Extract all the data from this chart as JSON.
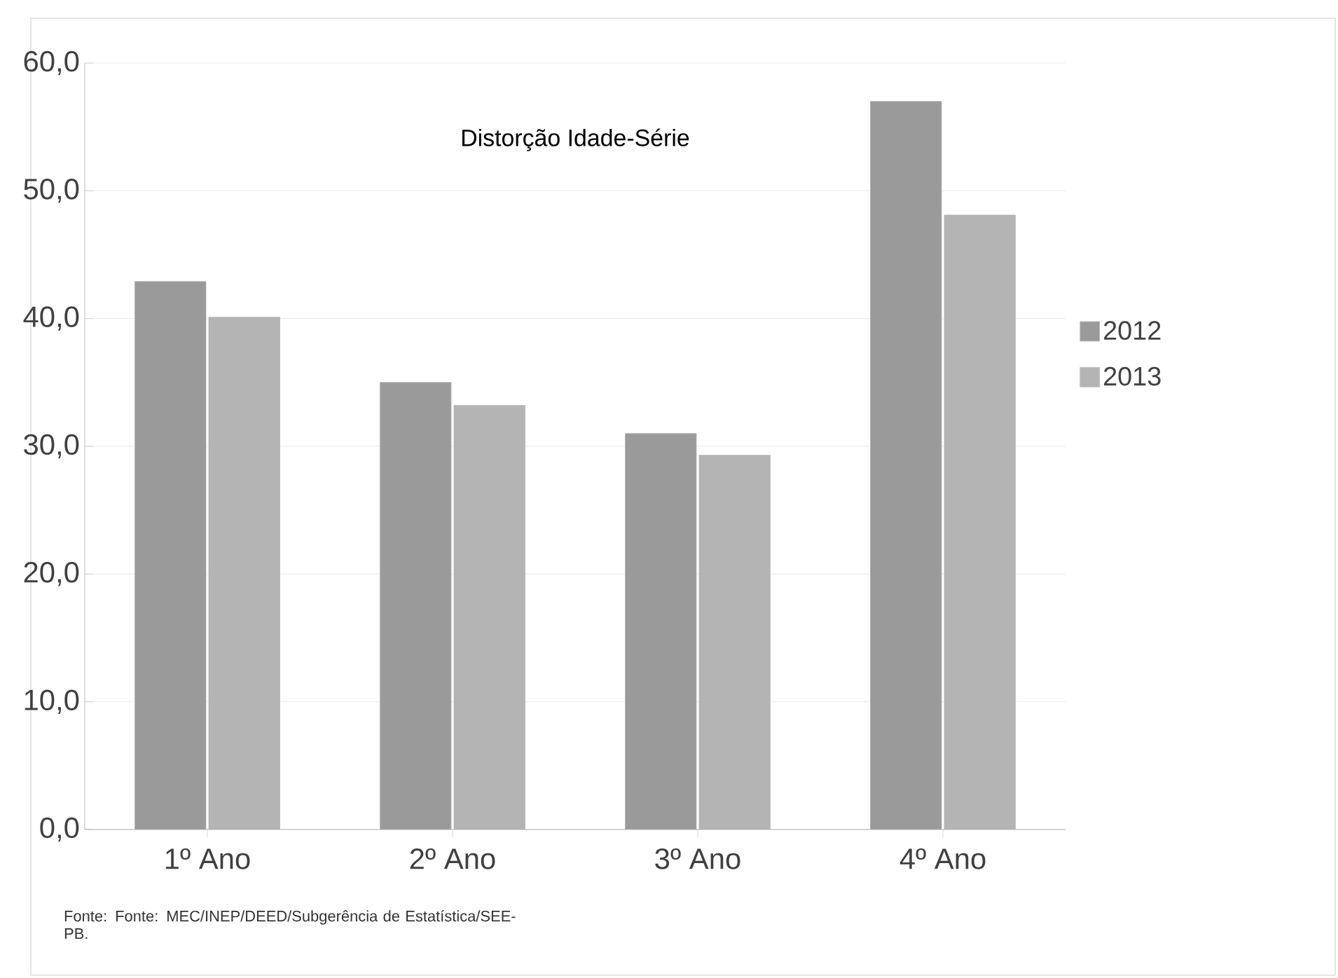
{
  "chart_data": {
    "type": "bar",
    "title": "Distorção Idade-Série",
    "categories": [
      "1º Ano",
      "2º Ano",
      "3º Ano",
      "4º Ano"
    ],
    "series": [
      {
        "name": "2012",
        "color": "#9a9a9a",
        "values": [
          42.9,
          35.0,
          31.0,
          57.0
        ]
      },
      {
        "name": "2013",
        "color": "#b4b4b4",
        "values": [
          40.1,
          33.2,
          29.3,
          48.1
        ]
      }
    ],
    "ylim": [
      0,
      60
    ],
    "yticks": [
      {
        "value": 0,
        "label": "0,0"
      },
      {
        "value": 10,
        "label": "10,0"
      },
      {
        "value": 20,
        "label": "20,0"
      },
      {
        "value": 30,
        "label": "30,0"
      },
      {
        "value": 40,
        "label": "40,0"
      },
      {
        "value": 50,
        "label": "50,0"
      },
      {
        "value": 60,
        "label": "60,0"
      }
    ],
    "grid": "y",
    "legend": "right",
    "annotations": [
      "Fonte: Fonte: MEC/INEP/DEED/Subgerência de Estatística/SEE-PB."
    ]
  }
}
